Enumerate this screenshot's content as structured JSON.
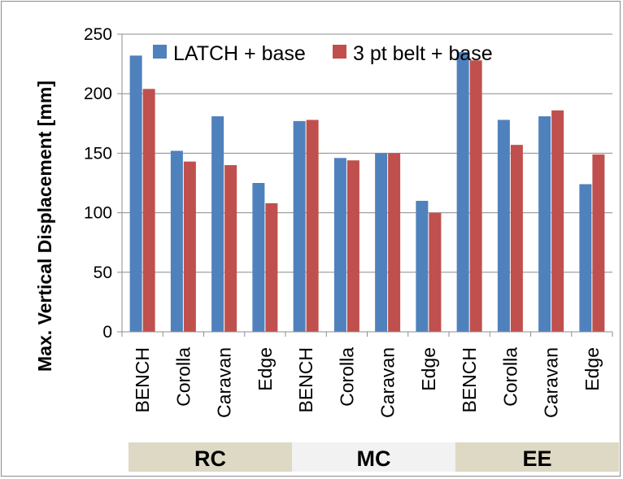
{
  "chart_data": {
    "type": "bar",
    "ylabel": "Max. Vertical Displacement [mm]",
    "xlabel": "",
    "ylim": [
      0,
      250
    ],
    "yticks": [
      0,
      50,
      100,
      150,
      200,
      250
    ],
    "grid": "horizontal",
    "legend_position": "top",
    "categories": [
      "BENCH",
      "Corolla",
      "Caravan",
      "Edge",
      "BENCH",
      "Corolla",
      "Caravan",
      "Edge",
      "BENCH",
      "Corolla",
      "Caravan",
      "Edge"
    ],
    "groups": [
      {
        "label": "RC",
        "color": "#ddd9c4"
      },
      {
        "label": "MC",
        "color": "#f2f2f2"
      },
      {
        "label": "EE",
        "color": "#ddd9c4"
      }
    ],
    "series": [
      {
        "name": "LATCH + base",
        "color": "#4f81bd",
        "values": [
          232,
          152,
          181,
          125,
          177,
          146,
          150,
          110,
          235,
          178,
          181,
          124
        ]
      },
      {
        "name": "3 pt belt + base",
        "color": "#c0504d",
        "values": [
          204,
          143,
          140,
          108,
          178,
          144,
          150,
          100,
          228,
          157,
          186,
          149
        ]
      }
    ]
  }
}
